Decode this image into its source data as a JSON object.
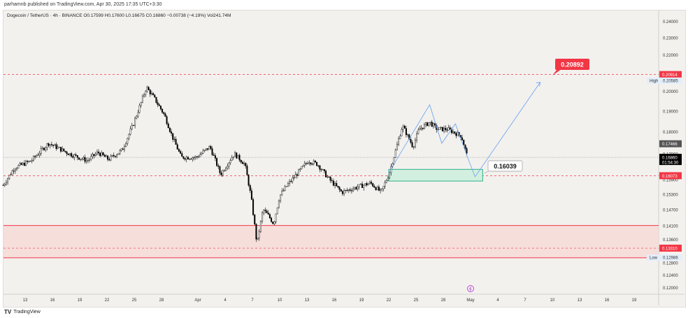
{
  "publisher": "parhamnb published on TradingView.com, Apr 30, 2025 17:35 UTC+3:30",
  "legend": "Dogecoin / TetherUS · 4h · BINANCE  O0.17599  H0.17600  L0.16675  C0.16860  −0.00738 (−4.19%)  Vol241.74M",
  "footer": {
    "brand": "TradingView"
  },
  "colors": {
    "up": "#ffffff",
    "down": "#000000",
    "red": "#f23645",
    "green": "#2bb38a",
    "blue": "#6fa8f0",
    "zone": "#f6d9d6"
  },
  "chart_data": {
    "type": "candlestick",
    "symbol": "Dogecoin / TetherUS",
    "timeframe": "4h",
    "y_scale": "log",
    "ylim": [
      0.118,
      0.246
    ],
    "y_ticks": [
      "0.24000",
      "0.23000",
      "0.22000",
      "0.20000",
      "0.19000",
      "0.18000",
      "0.17000",
      "0.15900",
      "0.15300",
      "0.14700",
      "0.14100",
      "0.13600",
      "0.12800",
      "0.12400",
      "0.12000"
    ],
    "x_ticks": [
      {
        "label": "13",
        "date": "2025-03-13"
      },
      {
        "label": "16",
        "date": "2025-03-16"
      },
      {
        "label": "19",
        "date": "2025-03-19"
      },
      {
        "label": "22",
        "date": "2025-03-22"
      },
      {
        "label": "25",
        "date": "2025-03-25"
      },
      {
        "label": "28",
        "date": "2025-03-28"
      },
      {
        "label": "Apr",
        "date": "2025-04-01"
      },
      {
        "label": "4",
        "date": "2025-04-04"
      },
      {
        "label": "7",
        "date": "2025-04-07"
      },
      {
        "label": "10",
        "date": "2025-04-10"
      },
      {
        "label": "13",
        "date": "2025-04-13"
      },
      {
        "label": "16",
        "date": "2025-04-16"
      },
      {
        "label": "19",
        "date": "2025-04-19"
      },
      {
        "label": "22",
        "date": "2025-04-22"
      },
      {
        "label": "25",
        "date": "2025-04-25"
      },
      {
        "label": "28",
        "date": "2025-04-28"
      },
      {
        "label": "May",
        "date": "2025-05-01"
      },
      {
        "label": "4",
        "date": "2025-05-04"
      },
      {
        "label": "7",
        "date": "2025-05-07"
      },
      {
        "label": "10",
        "date": "2025-05-10"
      },
      {
        "label": "13",
        "date": "2025-05-13"
      },
      {
        "label": "16",
        "date": "2025-05-16"
      },
      {
        "label": "19",
        "date": "2025-05-19"
      }
    ],
    "xlim": [
      "2025-03-10T12:00",
      "2025-05-22T00:00"
    ],
    "price_path": [
      [
        "2025-03-10T14:00",
        0.1568
      ],
      [
        "2025-03-11T20:00",
        0.1641
      ],
      [
        "2025-03-13T16:00",
        0.1671
      ],
      [
        "2025-03-15T14:00",
        0.1749
      ],
      [
        "2025-03-17T20:00",
        0.1702
      ],
      [
        "2025-03-19T20:00",
        0.1671
      ],
      [
        "2025-03-21T00:00",
        0.1708
      ],
      [
        "2025-03-22T04:00",
        0.1677
      ],
      [
        "2025-03-23T16:00",
        0.1718
      ],
      [
        "2025-03-24T20:00",
        0.1831
      ],
      [
        "2025-03-25T16:00",
        0.1933
      ],
      [
        "2025-03-26T08:00",
        0.2023
      ],
      [
        "2025-03-27T04:00",
        0.1969
      ],
      [
        "2025-03-28T08:00",
        0.1881
      ],
      [
        "2025-03-29T04:00",
        0.1781
      ],
      [
        "2025-03-30T04:00",
        0.1686
      ],
      [
        "2025-03-31T20:00",
        0.1686
      ],
      [
        "2025-04-02T08:00",
        0.1733
      ],
      [
        "2025-04-03T12:00",
        0.1612
      ],
      [
        "2025-04-05T00:00",
        0.1702
      ],
      [
        "2025-04-06T04:00",
        0.1656
      ],
      [
        "2025-04-06T20:00",
        0.1525
      ],
      [
        "2025-04-07T12:00",
        0.1344
      ],
      [
        "2025-04-08T04:00",
        0.1472
      ],
      [
        "2025-04-08T20:00",
        0.1445
      ],
      [
        "2025-04-09T08:00",
        0.1418
      ],
      [
        "2025-04-10T00:00",
        0.1525
      ],
      [
        "2025-04-10T20:00",
        0.1568
      ],
      [
        "2025-04-11T20:00",
        0.1612
      ],
      [
        "2025-04-13T04:00",
        0.1671
      ],
      [
        "2025-04-14T04:00",
        0.1656
      ],
      [
        "2025-04-15T08:00",
        0.1597
      ],
      [
        "2025-04-16T20:00",
        0.1539
      ],
      [
        "2025-04-18T12:00",
        0.156
      ],
      [
        "2025-04-20T00:00",
        0.1577
      ],
      [
        "2025-04-21T04:00",
        0.1539
      ],
      [
        "2025-04-22T00:00",
        0.1612
      ],
      [
        "2025-04-22T16:00",
        0.1702
      ],
      [
        "2025-04-23T12:00",
        0.1831
      ],
      [
        "2025-04-24T16:00",
        0.1733
      ],
      [
        "2025-04-25T08:00",
        0.1814
      ],
      [
        "2025-04-26T12:00",
        0.1847
      ],
      [
        "2025-04-27T08:00",
        0.1814
      ],
      [
        "2025-04-28T12:00",
        0.1814
      ],
      [
        "2025-04-30T00:00",
        0.1781
      ],
      [
        "2025-04-30T16:00",
        0.1686
      ]
    ],
    "levels": [
      {
        "price": 0.20914,
        "label": "0.20914",
        "style": "dashed",
        "color": "#f23645"
      },
      {
        "price": 0.16073,
        "label": "0.16073",
        "style": "dashed",
        "color": "#f23645"
      },
      {
        "price": 0.1331,
        "label": "0.13310",
        "style": "dashed",
        "color": "#f23645"
      },
      {
        "price": 0.1686,
        "label": "0.16860",
        "countdown": "01:54:30",
        "style": "dotted",
        "color": "#000000"
      }
    ],
    "price_labels": {
      "prev": "0.17466",
      "high_label": "High",
      "high": "0.20585",
      "low_label": "Low",
      "low": "0.12986"
    },
    "zone": {
      "top": 0.1412,
      "bottom": 0.1298
    },
    "demand_box": {
      "from": "2025-04-22T00:00",
      "to": "2025-05-02T08:00",
      "top": 0.1634,
      "bottom": 0.1585
    },
    "projection_path": [
      [
        "2025-04-22T00:00",
        0.162
      ],
      [
        "2025-04-26T12:00",
        0.1933
      ],
      [
        "2025-04-27T20:00",
        0.1749
      ],
      [
        "2025-04-29T08:00",
        0.184
      ],
      [
        "2025-04-30T16:00",
        0.1686
      ],
      [
        "2025-05-01T12:00",
        0.1603
      ],
      [
        "2025-05-08T16:00",
        0.205
      ]
    ],
    "annotations": [
      {
        "text": "0.16039",
        "kind": "callout"
      },
      {
        "text": "0.20892",
        "kind": "target"
      }
    ]
  }
}
